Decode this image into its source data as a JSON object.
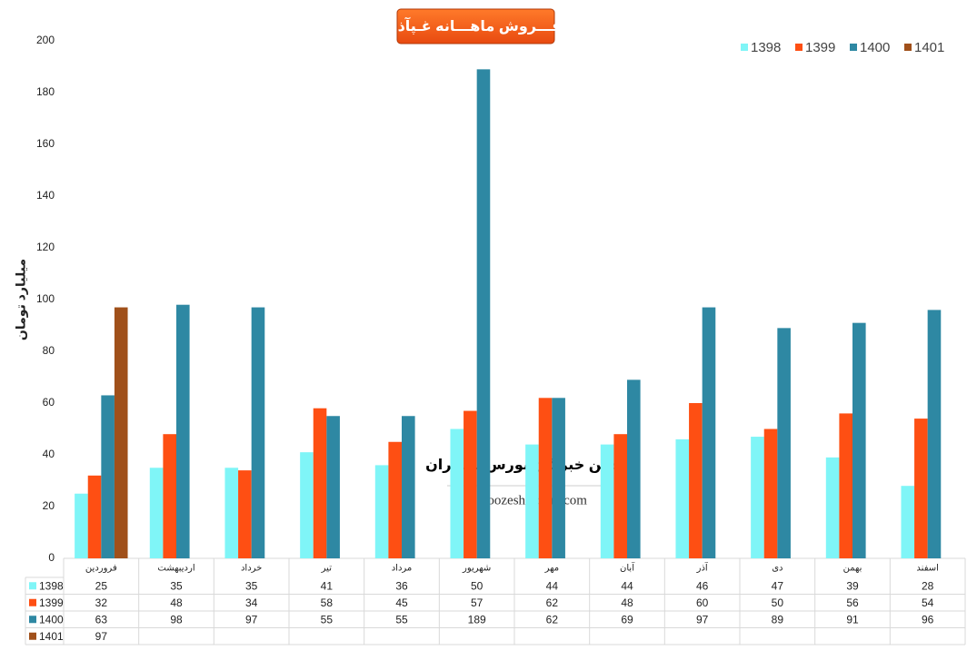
{
  "chart_data": {
    "type": "bar",
    "title": "فـــروش ماهـــانه غـپآذر",
    "y_label": "میلیارد تومان",
    "annotations": [
      "انجمن خبرگان بورس تهـــران",
      "amoozesh-boors.com"
    ],
    "categories": [
      "فروردین",
      "اردیبهشت",
      "خرداد",
      "تیر",
      "مرداد",
      "شهریور",
      "مهر",
      "آبان",
      "آذر",
      "دی",
      "بهمن",
      "اسفند"
    ],
    "series": [
      {
        "name": "1398",
        "color": "#7ff5f7",
        "values": [
          25,
          35,
          35,
          41,
          36,
          50,
          44,
          44,
          46,
          47,
          39,
          28
        ]
      },
      {
        "name": "1399",
        "color": "#fe4f13",
        "values": [
          32,
          48,
          34,
          58,
          45,
          57,
          62,
          48,
          60,
          50,
          56,
          54
        ]
      },
      {
        "name": "1400",
        "color": "#2e88a3",
        "values": [
          63,
          98,
          97,
          55,
          55,
          189,
          62,
          69,
          97,
          89,
          91,
          96
        ]
      },
      {
        "name": "1401",
        "color": "#a0501a",
        "values": [
          97,
          null,
          null,
          null,
          null,
          null,
          null,
          null,
          null,
          null,
          null,
          null
        ]
      }
    ],
    "ylim": [
      0,
      200
    ],
    "yticks": [
      0,
      20,
      40,
      60,
      80,
      100,
      120,
      140,
      160,
      180,
      200
    ],
    "grid": false,
    "legend": "top-right",
    "data_table": true
  }
}
